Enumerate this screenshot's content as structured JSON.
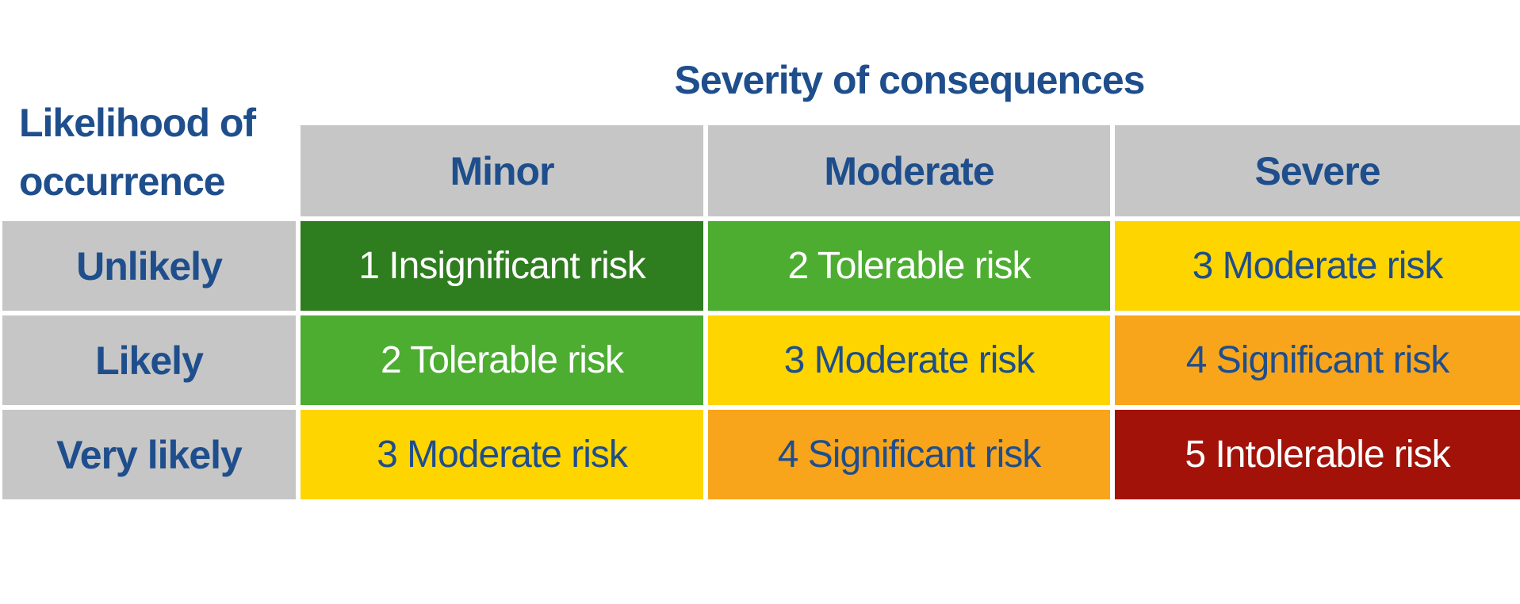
{
  "title": "Severity of consequences",
  "row_axis_label": "Likelihood of occurrence",
  "matrix": {
    "columns": [
      "Minor",
      "Moderate",
      "Severe"
    ],
    "rows": [
      "Unlikely",
      "Likely",
      "Very likely"
    ],
    "cells": [
      [
        {
          "text": "1 Insignificant risk",
          "level": "1"
        },
        {
          "text": "2 Tolerable risk",
          "level": "2"
        },
        {
          "text": "3 Moderate risk",
          "level": "3"
        }
      ],
      [
        {
          "text": "2 Tolerable risk",
          "level": "2"
        },
        {
          "text": "3 Moderate risk",
          "level": "3"
        },
        {
          "text": "4 Significant risk",
          "level": "4"
        }
      ],
      [
        {
          "text": "3 Moderate risk",
          "level": "3"
        },
        {
          "text": "4 Significant risk",
          "level": "4"
        },
        {
          "text": "5 Intolerable risk",
          "level": "5"
        }
      ]
    ]
  },
  "colors": {
    "heading_text": "#1F4E8C",
    "header_bg": "#C6C6C6",
    "level_1_insignificant": "#2E7D1E",
    "level_2_tolerable": "#4CAD31",
    "level_3_moderate": "#FFD500",
    "level_4_significant": "#F9A51B",
    "level_5_intolerable": "#A31208",
    "light_text": "#FFFFFF",
    "background": "#FFFFFF"
  }
}
